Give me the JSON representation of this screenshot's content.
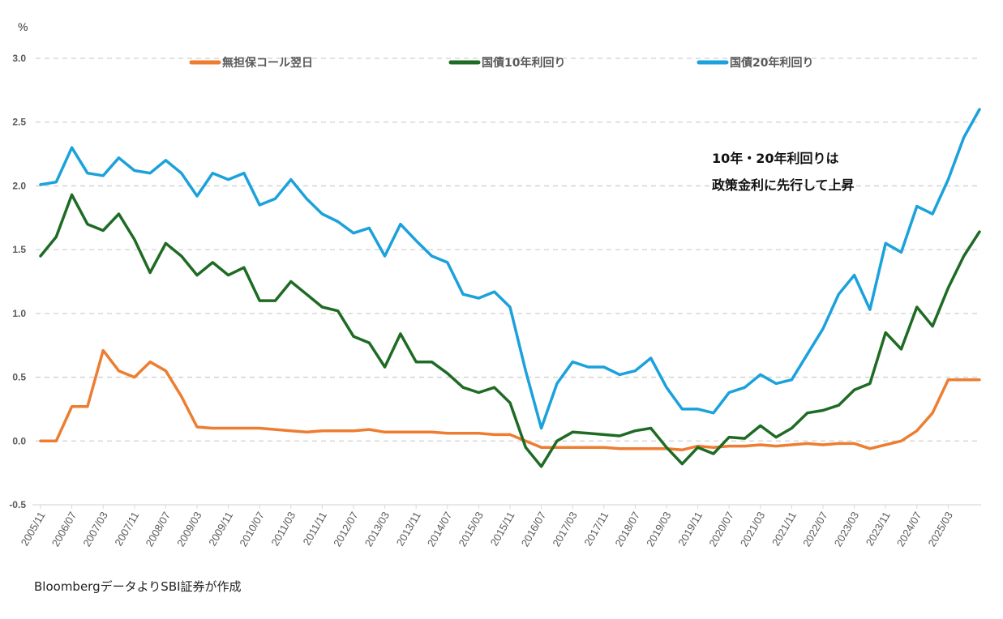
{
  "chart_data": {
    "type": "line",
    "unit_label": "%",
    "ylim": [
      -0.5,
      3.0
    ],
    "yticks": [
      "3.0",
      "2.5",
      "2.0",
      "1.5",
      "1.0",
      "0.5",
      "0.0",
      "-0.5"
    ],
    "ytick_values": [
      3.0,
      2.5,
      2.0,
      1.5,
      1.0,
      0.5,
      0.0,
      -0.5
    ],
    "negative_tick_color": "#FF0000",
    "grid": "horizontal dashed",
    "legend_placement": "top",
    "xtick_labels": [
      "2005/11",
      "2006/07",
      "2007/03",
      "2007/11",
      "2008/07",
      "2009/03",
      "2009/11",
      "2010/07",
      "2011/03",
      "2011/11",
      "2012/07",
      "2013/03",
      "2013/11",
      "2014/07",
      "2015/03",
      "2015/11",
      "2016/07",
      "2017/03",
      "2017/11",
      "2018/07",
      "2019/03",
      "2019/11",
      "2020/07",
      "2021/03",
      "2021/11",
      "2022/07",
      "2023/03",
      "2023/11",
      "2024/07",
      "2025/03"
    ],
    "x_start": "2005/11",
    "x_end": "2025/11",
    "x_step_months": 4,
    "series": [
      {
        "name": "無担保コール翌日",
        "color": "#ED7D31",
        "values": [
          0.0,
          0.0,
          0.27,
          0.27,
          0.71,
          0.55,
          0.5,
          0.62,
          0.55,
          0.35,
          0.11,
          0.1,
          0.1,
          0.1,
          0.1,
          0.09,
          0.08,
          0.07,
          0.08,
          0.08,
          0.08,
          0.09,
          0.07,
          0.07,
          0.07,
          0.07,
          0.06,
          0.06,
          0.06,
          0.05,
          0.05,
          0.0,
          -0.05,
          -0.05,
          -0.05,
          -0.05,
          -0.05,
          -0.06,
          -0.06,
          -0.06,
          -0.06,
          -0.07,
          -0.04,
          -0.05,
          -0.04,
          -0.04,
          -0.03,
          -0.04,
          -0.03,
          -0.02,
          -0.03,
          -0.02,
          -0.02,
          -0.06,
          -0.03,
          0.0,
          0.08,
          0.22,
          0.48,
          0.48,
          0.48
        ]
      },
      {
        "name": "国債10年利回り",
        "color": "#1E6B24",
        "values": [
          1.45,
          1.6,
          1.93,
          1.7,
          1.65,
          1.78,
          1.58,
          1.32,
          1.55,
          1.45,
          1.3,
          1.4,
          1.3,
          1.36,
          1.1,
          1.1,
          1.25,
          1.15,
          1.05,
          1.02,
          0.82,
          0.77,
          0.58,
          0.84,
          0.62,
          0.62,
          0.53,
          0.42,
          0.38,
          0.42,
          0.3,
          -0.05,
          -0.2,
          0.0,
          0.07,
          0.06,
          0.05,
          0.04,
          0.08,
          0.1,
          -0.05,
          -0.18,
          -0.05,
          -0.1,
          0.03,
          0.02,
          0.12,
          0.03,
          0.1,
          0.22,
          0.24,
          0.28,
          0.4,
          0.45,
          0.85,
          0.72,
          1.05,
          0.9,
          1.2,
          1.45,
          1.64
        ]
      },
      {
        "name": "国債20年利回り",
        "color": "#1BA1DB",
        "values": [
          2.01,
          2.03,
          2.3,
          2.1,
          2.08,
          2.22,
          2.12,
          2.1,
          2.2,
          2.1,
          1.92,
          2.1,
          2.05,
          2.1,
          1.85,
          1.9,
          2.05,
          1.9,
          1.78,
          1.72,
          1.63,
          1.67,
          1.45,
          1.7,
          1.57,
          1.45,
          1.4,
          1.15,
          1.12,
          1.17,
          1.05,
          0.55,
          0.1,
          0.45,
          0.62,
          0.58,
          0.58,
          0.52,
          0.55,
          0.65,
          0.42,
          0.25,
          0.25,
          0.22,
          0.38,
          0.42,
          0.52,
          0.45,
          0.48,
          0.68,
          0.88,
          1.15,
          1.3,
          1.03,
          1.55,
          1.48,
          1.84,
          1.78,
          2.05,
          2.38,
          2.6
        ]
      }
    ],
    "annotation": [
      "10年・20年利回りは",
      "政策金利に先行して上昇"
    ],
    "source": "BloombergデータよりSBI証券が作成"
  }
}
